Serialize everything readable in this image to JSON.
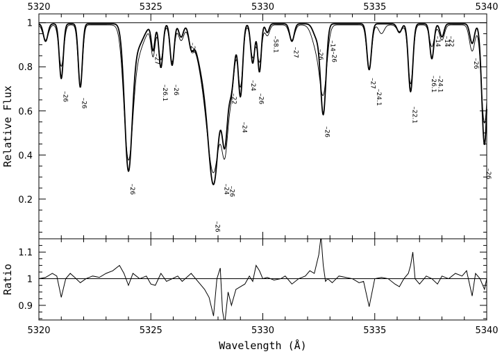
{
  "chart_data": [
    {
      "type": "line",
      "panel": "top",
      "xlabel": "",
      "ylabel": "Relative Flux",
      "xlim": [
        5320,
        5340
      ],
      "ylim": [
        0.02,
        1.04
      ],
      "xticks": [
        5320,
        5325,
        5330,
        5335,
        5340
      ],
      "yticks": [
        0.2,
        0.4,
        0.6,
        0.8,
        1
      ],
      "ytick_labels": [
        "0.2",
        "0.4",
        "0.6",
        "0.8",
        "1"
      ],
      "xtick_labels_top": [
        "5320",
        "5325",
        "5330",
        "5335",
        "5340"
      ],
      "continuum": 1.0,
      "series": [
        {
          "style": "thick",
          "baseline": 0.995,
          "lines": [
            {
              "x": 5320.3,
              "depth": 0.08,
              "width": 0.1
            },
            {
              "x": 5321.0,
              "depth": 0.25,
              "width": 0.09
            },
            {
              "x": 5321.85,
              "depth": 0.29,
              "width": 0.09
            },
            {
              "x": 5324.0,
              "depth": 0.66,
              "width": 0.17
            },
            {
              "x": 5324.4,
              "depth": 0.1,
              "width": 0.28
            },
            {
              "x": 5325.1,
              "depth": 0.12,
              "width": 0.08
            },
            {
              "x": 5325.45,
              "depth": 0.2,
              "width": 0.09
            },
            {
              "x": 5325.95,
              "depth": 0.19,
              "width": 0.09
            },
            {
              "x": 5326.35,
              "depth": 0.06,
              "width": 0.1
            },
            {
              "x": 5326.8,
              "depth": 0.08,
              "width": 0.1
            },
            {
              "x": 5327.8,
              "depth": 0.72,
              "width": 0.26
            },
            {
              "x": 5328.3,
              "depth": 0.5,
              "width": 0.14
            },
            {
              "x": 5327.3,
              "depth": 0.18,
              "width": 0.3
            },
            {
              "x": 5328.6,
              "depth": 0.28,
              "width": 0.14
            },
            {
              "x": 5329.0,
              "depth": 0.33,
              "width": 0.1
            },
            {
              "x": 5329.55,
              "depth": 0.18,
              "width": 0.09
            },
            {
              "x": 5329.85,
              "depth": 0.22,
              "width": 0.08
            },
            {
              "x": 5330.2,
              "depth": 0.04,
              "width": 0.08
            },
            {
              "x": 5331.3,
              "depth": 0.08,
              "width": 0.1
            },
            {
              "x": 5332.7,
              "depth": 0.41,
              "width": 0.12
            },
            {
              "x": 5332.4,
              "depth": 0.06,
              "width": 0.15
            },
            {
              "x": 5334.75,
              "depth": 0.21,
              "width": 0.1
            },
            {
              "x": 5336.1,
              "depth": 0.04,
              "width": 0.1
            },
            {
              "x": 5336.6,
              "depth": 0.31,
              "width": 0.1
            },
            {
              "x": 5337.55,
              "depth": 0.16,
              "width": 0.09
            },
            {
              "x": 5338.0,
              "depth": 0.06,
              "width": 0.09
            },
            {
              "x": 5339.35,
              "depth": 0.09,
              "width": 0.1
            },
            {
              "x": 5339.9,
              "depth": 0.55,
              "width": 0.12
            }
          ]
        },
        {
          "style": "thin",
          "baseline": 0.99,
          "lines": [
            {
              "x": 5320.3,
              "depth": 0.07,
              "width": 0.12
            },
            {
              "x": 5321.0,
              "depth": 0.19,
              "width": 0.11
            },
            {
              "x": 5321.85,
              "depth": 0.28,
              "width": 0.1
            },
            {
              "x": 5324.0,
              "depth": 0.6,
              "width": 0.2
            },
            {
              "x": 5324.4,
              "depth": 0.12,
              "width": 0.3
            },
            {
              "x": 5325.1,
              "depth": 0.14,
              "width": 0.09
            },
            {
              "x": 5325.45,
              "depth": 0.16,
              "width": 0.1
            },
            {
              "x": 5325.95,
              "depth": 0.17,
              "width": 0.1
            },
            {
              "x": 5326.35,
              "depth": 0.07,
              "width": 0.12
            },
            {
              "x": 5326.8,
              "depth": 0.07,
              "width": 0.11
            },
            {
              "x": 5327.8,
              "depth": 0.66,
              "width": 0.3
            },
            {
              "x": 5328.3,
              "depth": 0.52,
              "width": 0.16
            },
            {
              "x": 5327.3,
              "depth": 0.16,
              "width": 0.32
            },
            {
              "x": 5328.6,
              "depth": 0.26,
              "width": 0.15
            },
            {
              "x": 5329.0,
              "depth": 0.28,
              "width": 0.11
            },
            {
              "x": 5329.55,
              "depth": 0.15,
              "width": 0.1
            },
            {
              "x": 5329.85,
              "depth": 0.17,
              "width": 0.1
            },
            {
              "x": 5330.2,
              "depth": 0.05,
              "width": 0.1
            },
            {
              "x": 5331.3,
              "depth": 0.07,
              "width": 0.12
            },
            {
              "x": 5332.7,
              "depth": 0.3,
              "width": 0.16
            },
            {
              "x": 5332.4,
              "depth": 0.1,
              "width": 0.2
            },
            {
              "x": 5334.75,
              "depth": 0.2,
              "width": 0.11
            },
            {
              "x": 5335.3,
              "depth": 0.04,
              "width": 0.12
            },
            {
              "x": 5336.1,
              "depth": 0.03,
              "width": 0.12
            },
            {
              "x": 5336.6,
              "depth": 0.27,
              "width": 0.11
            },
            {
              "x": 5337.55,
              "depth": 0.1,
              "width": 0.11
            },
            {
              "x": 5338.0,
              "depth": 0.07,
              "width": 0.11
            },
            {
              "x": 5339.35,
              "depth": 0.12,
              "width": 0.12
            },
            {
              "x": 5339.9,
              "depth": 0.45,
              "width": 0.14
            }
          ]
        }
      ],
      "annotations": [
        {
          "x": 5321.0,
          "y": 0.69,
          "text": "–26"
        },
        {
          "x": 5321.85,
          "y": 0.66,
          "text": "–26"
        },
        {
          "x": 5324.0,
          "y": 0.27,
          "text": "–26"
        },
        {
          "x": 5325.1,
          "y": 0.86,
          "text": "–27"
        },
        {
          "x": 5325.45,
          "y": 0.72,
          "text": "–26.1"
        },
        {
          "x": 5325.95,
          "y": 0.72,
          "text": "–26"
        },
        {
          "x": 5326.7,
          "y": 0.91,
          "text": "–26"
        },
        {
          "x": 5327.8,
          "y": 0.1,
          "text": "–26"
        },
        {
          "x": 5328.2,
          "y": 0.27,
          "text": "–24"
        },
        {
          "x": 5328.45,
          "y": 0.26,
          "text": "–26"
        },
        {
          "x": 5328.55,
          "y": 0.68,
          "text": "–22"
        },
        {
          "x": 5329.0,
          "y": 0.55,
          "text": "–24"
        },
        {
          "x": 5329.4,
          "y": 0.74,
          "text": "–24"
        },
        {
          "x": 5329.75,
          "y": 0.68,
          "text": "–26"
        },
        {
          "x": 5330.4,
          "y": 0.94,
          "text": "–58.1"
        },
        {
          "x": 5331.3,
          "y": 0.89,
          "text": "–27"
        },
        {
          "x": 5332.4,
          "y": 0.88,
          "text": "–26"
        },
        {
          "x": 5332.95,
          "y": 0.92,
          "text": "–14"
        },
        {
          "x": 5333.0,
          "y": 0.87,
          "text": "–26"
        },
        {
          "x": 5332.7,
          "y": 0.53,
          "text": "–26"
        },
        {
          "x": 5334.75,
          "y": 0.75,
          "text": "–27"
        },
        {
          "x": 5335.0,
          "y": 0.7,
          "text": "–24.1"
        },
        {
          "x": 5336.6,
          "y": 0.62,
          "text": "–22.1"
        },
        {
          "x": 5337.45,
          "y": 0.76,
          "text": "–26.1"
        },
        {
          "x": 5337.75,
          "y": 0.76,
          "text": "–24.1"
        },
        {
          "x": 5337.65,
          "y": 0.94,
          "text": "–14"
        },
        {
          "x": 5338.05,
          "y": 0.94,
          "text": "–14"
        },
        {
          "x": 5338.25,
          "y": 0.94,
          "text": "–22"
        },
        {
          "x": 5339.35,
          "y": 0.84,
          "text": "–26"
        },
        {
          "x": 5339.9,
          "y": 0.34,
          "text": "–26"
        }
      ]
    },
    {
      "type": "line",
      "panel": "bottom",
      "xlabel": "Wavelength (Å)",
      "ylabel": "Ratio",
      "xlim": [
        5320,
        5340
      ],
      "ylim": [
        0.845,
        1.15
      ],
      "xticks": [
        5320,
        5325,
        5330,
        5335,
        5340
      ],
      "yticks": [
        0.9,
        1,
        1.1
      ],
      "ytick_labels": [
        "0.9",
        "1",
        "1.1"
      ],
      "xtick_labels": [
        "5320",
        "5325",
        "5330",
        "5335",
        "5340"
      ],
      "reference": 1.0,
      "series": [
        {
          "x": [
            5320.0,
            5320.3,
            5320.6,
            5320.8,
            5321.0,
            5321.2,
            5321.4,
            5321.6,
            5321.85,
            5322.1,
            5322.4,
            5322.7,
            5323.0,
            5323.3,
            5323.6,
            5323.8,
            5324.0,
            5324.2,
            5324.5,
            5324.8,
            5325.0,
            5325.2,
            5325.45,
            5325.7,
            5325.95,
            5326.2,
            5326.4,
            5326.6,
            5326.8,
            5327.0,
            5327.2,
            5327.4,
            5327.6,
            5327.8,
            5327.95,
            5328.1,
            5328.2,
            5328.3,
            5328.45,
            5328.6,
            5328.8,
            5329.0,
            5329.2,
            5329.4,
            5329.55,
            5329.7,
            5329.85,
            5330.0,
            5330.2,
            5330.5,
            5330.8,
            5331.0,
            5331.3,
            5331.6,
            5331.9,
            5332.1,
            5332.3,
            5332.5,
            5332.6,
            5332.7,
            5332.8,
            5332.9,
            5333.1,
            5333.4,
            5333.7,
            5334.0,
            5334.3,
            5334.5,
            5334.75,
            5335.0,
            5335.3,
            5335.6,
            5335.9,
            5336.1,
            5336.3,
            5336.5,
            5336.6,
            5336.7,
            5336.8,
            5337.0,
            5337.3,
            5337.55,
            5337.8,
            5338.0,
            5338.3,
            5338.6,
            5338.9,
            5339.1,
            5339.35,
            5339.5,
            5339.7,
            5339.9,
            5340.0
          ],
          "y": [
            1.0,
            1.005,
            1.02,
            1.01,
            0.93,
            1.0,
            1.02,
            1.005,
            0.985,
            1.0,
            1.01,
            1.005,
            1.02,
            1.03,
            1.05,
            1.02,
            0.975,
            1.02,
            1.0,
            1.01,
            0.98,
            0.975,
            1.02,
            0.99,
            1.0,
            1.01,
            0.99,
            1.005,
            1.02,
            1.0,
            0.98,
            0.96,
            0.93,
            0.86,
            1.0,
            1.04,
            0.88,
            0.83,
            0.95,
            0.9,
            0.96,
            0.97,
            0.98,
            1.01,
            0.99,
            1.05,
            1.03,
            1.0,
            1.005,
            0.995,
            1.0,
            1.01,
            0.98,
            1.0,
            1.01,
            1.03,
            1.02,
            1.09,
            1.16,
            1.05,
            0.99,
            1.0,
            0.985,
            1.01,
            1.005,
            1.0,
            0.985,
            0.99,
            0.895,
            1.0,
            1.005,
            1.0,
            0.98,
            0.97,
            1.0,
            1.02,
            1.05,
            1.1,
            1.0,
            0.98,
            1.01,
            1.0,
            0.98,
            1.01,
            1.0,
            1.02,
            1.01,
            1.03,
            0.935,
            1.02,
            1.0,
            0.96,
            1.0
          ]
        }
      ]
    }
  ]
}
